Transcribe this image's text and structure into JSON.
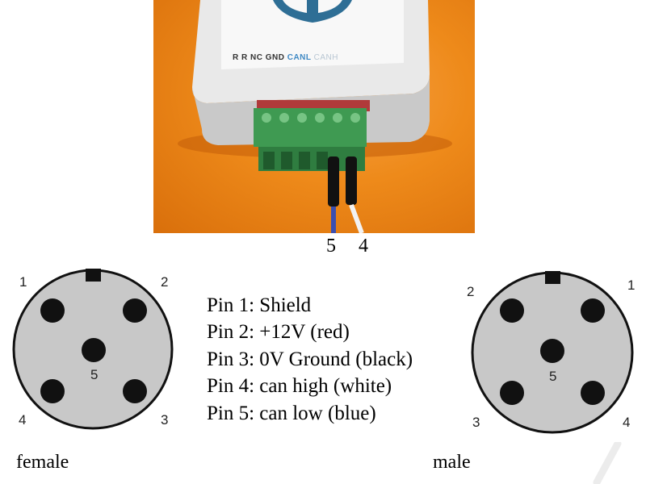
{
  "device": {
    "label_left": "R R NC GND",
    "label_canl": "CANL",
    "label_canh": "CANH",
    "logo": "anchor-icon"
  },
  "wires": {
    "left_number": "5",
    "right_number": "4"
  },
  "female": {
    "caption": "female",
    "pins": {
      "p1": "1",
      "p2": "2",
      "p3": "3",
      "p4": "4",
      "p5": "5"
    }
  },
  "male": {
    "caption": "male",
    "pins": {
      "p1": "1",
      "p2": "2",
      "p3": "3",
      "p4": "4",
      "p5": "5"
    }
  },
  "legend": [
    "Pin 1: Shield",
    "Pin 2: +12V (red)",
    "Pin 3: 0V Ground (black)",
    "Pin 4: can high (white)",
    "Pin 5: can low (blue)"
  ],
  "colors": {
    "connector_face": "#c8c8c8",
    "pin": "#111111",
    "background_orange": "#ee8a1a",
    "terminal_green": "#3f9a52",
    "canl_blue": "#3f89c4"
  }
}
